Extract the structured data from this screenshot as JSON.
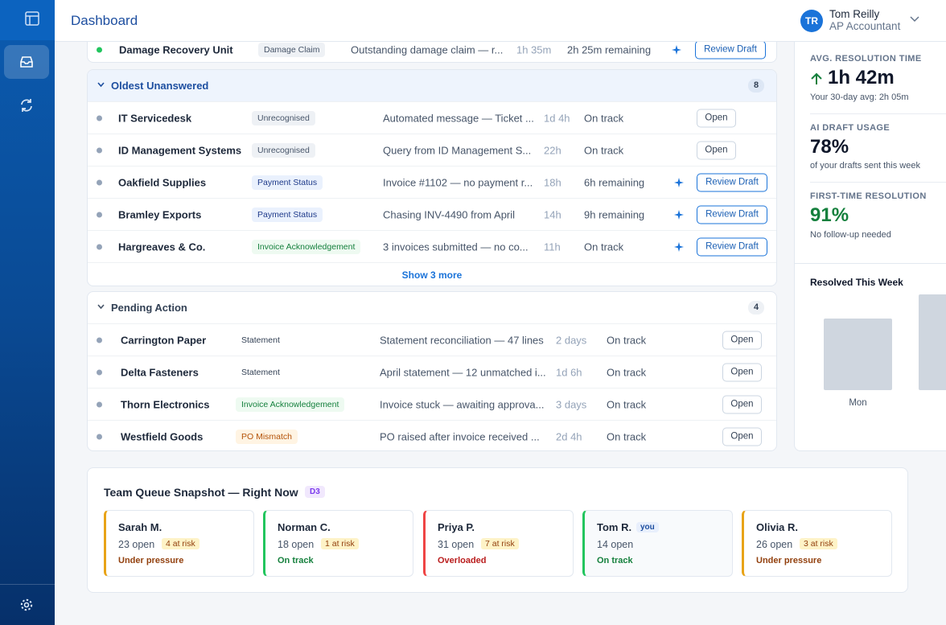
{
  "header": {
    "title": "Dashboard"
  },
  "user": {
    "initials": "TR",
    "name": "Tom Reilly",
    "role": "AP Accountant"
  },
  "top_row": {
    "name": "Damage Recovery Unit",
    "tag": "Damage Claim",
    "tag_fg": "#475569",
    "tag_bg": "#eef1f5",
    "subject": "Outstanding damage claim — r...",
    "age": "1h 35m",
    "sla": "2h 25m remaining",
    "action": "Review Draft",
    "ai": true,
    "dot": "#22c55e"
  },
  "sections": [
    {
      "title": "Oldest Unanswered",
      "count": 8,
      "more": "Show 3 more",
      "rows": [
        {
          "name": "IT Servicedesk",
          "tag": "Unrecognised",
          "tag_fg": "#475569",
          "tag_bg": "#eef1f5",
          "subject": "Automated message — Ticket ...",
          "age": "1d 4h",
          "sla": "On track",
          "action": "Open",
          "ai": false,
          "dot": "#94a3b8"
        },
        {
          "name": "ID Management Systems",
          "tag": "Unrecognised",
          "tag_fg": "#475569",
          "tag_bg": "#eef1f5",
          "subject": "Query from ID Management S...",
          "age": "22h",
          "sla": "On track",
          "action": "Open",
          "ai": false,
          "dot": "#94a3b8"
        },
        {
          "name": "Oakfield Supplies",
          "tag": "Payment Status",
          "tag_fg": "#1e3a8a",
          "tag_bg": "#eaf1fd",
          "subject": "Invoice #1102 — no payment r...",
          "age": "18h",
          "sla": "6h remaining",
          "action": "Review Draft",
          "ai": true,
          "dot": "#94a3b8"
        },
        {
          "name": "Bramley Exports",
          "tag": "Payment Status",
          "tag_fg": "#1e3a8a",
          "tag_bg": "#eaf1fd",
          "subject": "Chasing INV-4490 from April",
          "age": "14h",
          "sla": "9h remaining",
          "action": "Review Draft",
          "ai": true,
          "dot": "#94a3b8"
        },
        {
          "name": "Hargreaves & Co.",
          "tag": "Invoice Acknowledgement",
          "tag_fg": "#15803d",
          "tag_bg": "#eefaf1",
          "subject": "3 invoices submitted — no co...",
          "age": "11h",
          "sla": "On track",
          "action": "Review Draft",
          "ai": true,
          "dot": "#94a3b8"
        }
      ]
    },
    {
      "title": "Pending Action",
      "count": 4,
      "rows": [
        {
          "name": "Carrington Paper",
          "tag": "Statement",
          "tag_fg": "#334155",
          "tag_bg": "#ffffff",
          "subject": "Statement reconciliation — 47 lines",
          "age": "2 days",
          "sla": "On track",
          "action": "Open",
          "ai": false,
          "dot": "#94a3b8"
        },
        {
          "name": "Delta Fasteners",
          "tag": "Statement",
          "tag_fg": "#334155",
          "tag_bg": "#ffffff",
          "subject": "April statement — 12 unmatched i...",
          "age": "1d 6h",
          "sla": "On track",
          "action": "Open",
          "ai": false,
          "dot": "#94a3b8"
        },
        {
          "name": "Thorn Electronics",
          "tag": "Invoice Acknowledgement",
          "tag_fg": "#15803d",
          "tag_bg": "#eefaf1",
          "subject": "Invoice stuck — awaiting approva...",
          "age": "3 days",
          "sla": "On track",
          "action": "Open",
          "ai": false,
          "dot": "#94a3b8"
        },
        {
          "name": "Westfield Goods",
          "tag": "PO Mismatch",
          "tag_fg": "#b45309",
          "tag_bg": "#fff4e3",
          "subject": "PO raised after invoice received ...",
          "age": "2d 4h",
          "sla": "On track",
          "action": "Open",
          "ai": false,
          "dot": "#94a3b8"
        }
      ]
    }
  ],
  "metrics": [
    {
      "label": "AVG. RESOLUTION TIME",
      "value": "1h 42m",
      "note": "Your 30-day avg: 2h 05m",
      "color": "#0f172a"
    },
    {
      "label": "AI DRAFT USAGE",
      "value": "78%",
      "note": "of your drafts sent this week",
      "color": "#0f172a"
    },
    {
      "label": "FIRST-TIME RESOLUTION",
      "value": "91%",
      "note": "No follow-up needed",
      "color": "#15803d"
    }
  ],
  "resolved": {
    "title": "Resolved This Week",
    "day": "Mon"
  },
  "team": {
    "title": "Team Queue Snapshot — Right Now",
    "badge": "D3",
    "members": [
      {
        "name": "Sarah M.",
        "open": "23 open",
        "risk": "4 at risk",
        "status": "Under pressure",
        "color": "#e8a317",
        "status_color": "#92400e"
      },
      {
        "name": "Norman C.",
        "open": "18 open",
        "risk": "1 at risk",
        "status": "On track",
        "color": "#22c55e",
        "status_color": "#15803d"
      },
      {
        "name": "Priya P.",
        "open": "31 open",
        "risk": "7 at risk",
        "status": "Overloaded",
        "color": "#ef4444",
        "status_color": "#b91c1c"
      },
      {
        "name": "Tom R.",
        "you": "you",
        "open": "14 open",
        "status": "On track",
        "color": "#22c55e",
        "status_color": "#15803d"
      },
      {
        "name": "Olivia R.",
        "open": "26 open",
        "risk": "3 at risk",
        "status": "Under pressure",
        "color": "#e8a317",
        "status_color": "#92400e"
      }
    ]
  }
}
